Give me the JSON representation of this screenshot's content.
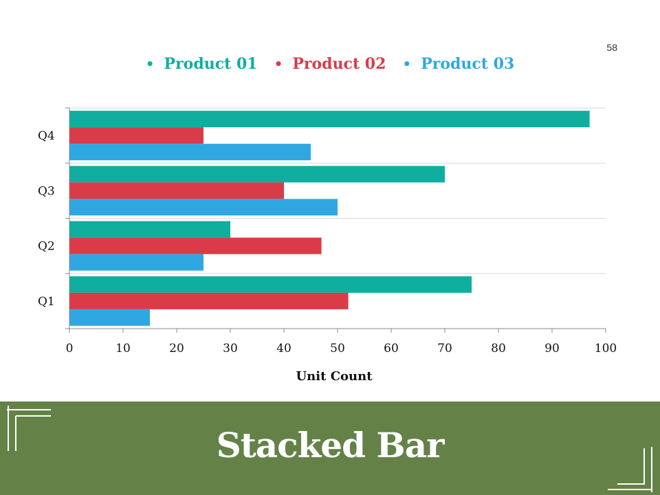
{
  "page": {
    "number": "58"
  },
  "colors": {
    "p1": "#0fae9f",
    "p2": "#da3b48",
    "p3": "#2fa8e1",
    "footer": "#648248"
  },
  "chart_data": {
    "type": "bar",
    "orientation": "horizontal",
    "categories": [
      "Q1",
      "Q2",
      "Q3",
      "Q4"
    ],
    "series": [
      {
        "name": "Product 01",
        "values": [
          75,
          30,
          70,
          97
        ]
      },
      {
        "name": "Product 02",
        "values": [
          52,
          47,
          40,
          25
        ]
      },
      {
        "name": "Product 03",
        "values": [
          15,
          25,
          50,
          45
        ]
      }
    ],
    "xlabel": "Unit Count",
    "ylabel": "",
    "xlim": [
      0,
      100
    ],
    "xticks": [
      0,
      10,
      20,
      30,
      40,
      50,
      60,
      70,
      80,
      90,
      100
    ],
    "legend": "top-center",
    "grid": "horizontal-category-separators"
  },
  "footer": {
    "title": "Stacked Bar"
  }
}
